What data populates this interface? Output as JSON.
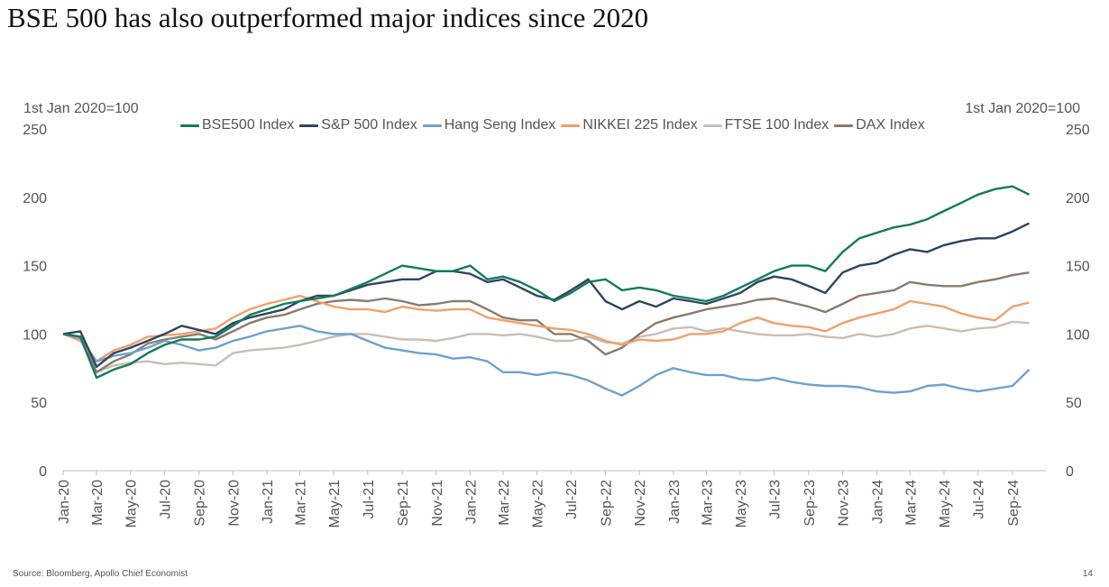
{
  "title": "BSE 500 has also outperformed major indices since 2020",
  "units": {
    "left": "1st Jan 2020=100",
    "right": "1st Jan 2020=100"
  },
  "source": "Source: Bloomberg, Apollo Chief Economist",
  "page_number": "14",
  "chart_data": {
    "type": "line",
    "title": "BSE 500 has also outperformed major indices since 2020",
    "ylabel": "1st Jan 2020=100",
    "ylim": [
      0,
      250
    ],
    "yticks": [
      0,
      50,
      100,
      150,
      200,
      250
    ],
    "xlim": [
      "2020-01-01",
      "2024-10-31"
    ],
    "x_tick_labels": [
      "Jan-20",
      "Mar-20",
      "May-20",
      "Jul-20",
      "Sep-20",
      "Nov-20",
      "Jan-21",
      "Mar-21",
      "May-21",
      "Jul-21",
      "Sep-21",
      "Nov-21",
      "Jan-22",
      "Mar-22",
      "May-22",
      "Jul-22",
      "Sep-22",
      "Nov-22",
      "Jan-23",
      "Mar-23",
      "May-23",
      "Jul-23",
      "Sep-23",
      "Nov-23",
      "Jan-24",
      "Mar-24",
      "May-24",
      "Jul-24",
      "Sep-24"
    ],
    "x_tick_dates": [
      "2020-01-01",
      "2020-03-01",
      "2020-05-01",
      "2020-07-01",
      "2020-09-01",
      "2020-11-01",
      "2021-01-01",
      "2021-03-01",
      "2021-05-01",
      "2021-07-01",
      "2021-09-01",
      "2021-11-01",
      "2022-01-01",
      "2022-03-01",
      "2022-05-01",
      "2022-07-01",
      "2022-09-01",
      "2022-11-01",
      "2023-01-01",
      "2023-03-01",
      "2023-05-01",
      "2023-07-01",
      "2023-09-01",
      "2023-11-01",
      "2024-01-01",
      "2024-03-01",
      "2024-05-01",
      "2024-07-01",
      "2024-09-01"
    ],
    "x": [
      "2020-01",
      "2020-02",
      "2020-03",
      "2020-04",
      "2020-05",
      "2020-06",
      "2020-07",
      "2020-08",
      "2020-09",
      "2020-10",
      "2020-11",
      "2020-12",
      "2021-01",
      "2021-02",
      "2021-03",
      "2021-04",
      "2021-05",
      "2021-06",
      "2021-07",
      "2021-08",
      "2021-09",
      "2021-10",
      "2021-11",
      "2021-12",
      "2022-01",
      "2022-02",
      "2022-03",
      "2022-04",
      "2022-05",
      "2022-06",
      "2022-07",
      "2022-08",
      "2022-09",
      "2022-10",
      "2022-11",
      "2022-12",
      "2023-01",
      "2023-02",
      "2023-03",
      "2023-04",
      "2023-05",
      "2023-06",
      "2023-07",
      "2023-08",
      "2023-09",
      "2023-10",
      "2023-11",
      "2023-12",
      "2024-01",
      "2024-02",
      "2024-03",
      "2024-04",
      "2024-05",
      "2024-06",
      "2024-07",
      "2024-08",
      "2024-09",
      "2024-10"
    ],
    "series": [
      {
        "name": "FTSE 100 Index",
        "color": "#c8beb7",
        "values": [
          100,
          96,
          72,
          77,
          79,
          80,
          78,
          79,
          78,
          77,
          86,
          88,
          89,
          90,
          92,
          95,
          98,
          100,
          100,
          98,
          96,
          96,
          95,
          97,
          100,
          100,
          99,
          100,
          98,
          95,
          95,
          98,
          94,
          93,
          98,
          100,
          104,
          105,
          102,
          104,
          102,
          100,
          99,
          99,
          100,
          98,
          97,
          100,
          98,
          100,
          104,
          106,
          104,
          102,
          104,
          105,
          109,
          108
        ]
      },
      {
        "name": "DAX Index",
        "color": "#8c7a6b",
        "values": [
          100,
          98,
          72,
          80,
          85,
          93,
          96,
          98,
          100,
          96,
          102,
          108,
          112,
          114,
          118,
          122,
          124,
          125,
          124,
          126,
          124,
          121,
          122,
          124,
          124,
          118,
          112,
          110,
          110,
          100,
          100,
          95,
          85,
          90,
          100,
          108,
          112,
          115,
          118,
          120,
          122,
          125,
          126,
          123,
          120,
          116,
          122,
          128,
          130,
          132,
          138,
          136,
          135,
          135,
          138,
          140,
          143,
          145
        ]
      },
      {
        "name": "NIKKEI 225 Index",
        "color": "#f0a06b",
        "values": [
          100,
          95,
          80,
          88,
          92,
          98,
          99,
          100,
          102,
          104,
          112,
          118,
          122,
          125,
          128,
          124,
          120,
          118,
          118,
          116,
          120,
          118,
          117,
          118,
          118,
          112,
          110,
          108,
          106,
          104,
          103,
          100,
          95,
          92,
          96,
          95,
          96,
          100,
          100,
          102,
          108,
          112,
          108,
          106,
          105,
          102,
          108,
          112,
          115,
          118,
          124,
          122,
          120,
          115,
          112,
          110,
          120,
          123
        ]
      },
      {
        "name": "Hang Seng Index",
        "color": "#6fa0d0",
        "values": [
          100,
          97,
          80,
          84,
          86,
          90,
          95,
          92,
          88,
          90,
          95,
          98,
          102,
          104,
          106,
          102,
          100,
          100,
          95,
          90,
          88,
          86,
          85,
          82,
          83,
          80,
          72,
          72,
          70,
          72,
          70,
          66,
          60,
          55,
          62,
          70,
          75,
          72,
          70,
          70,
          67,
          66,
          68,
          65,
          63,
          62,
          62,
          61,
          58,
          57,
          58,
          62,
          63,
          60,
          58,
          60,
          62,
          74
        ]
      },
      {
        "name": "S&P 500 Index",
        "color": "#2e4562",
        "values": [
          100,
          102,
          76,
          86,
          90,
          95,
          100,
          106,
          103,
          100,
          108,
          112,
          115,
          118,
          124,
          128,
          128,
          132,
          136,
          138,
          140,
          140,
          146,
          146,
          144,
          138,
          140,
          134,
          128,
          125,
          132,
          140,
          124,
          118,
          124,
          120,
          126,
          124,
          122,
          126,
          130,
          138,
          142,
          140,
          135,
          130,
          145,
          150,
          152,
          158,
          162,
          160,
          165,
          168,
          170,
          170,
          175,
          181
        ]
      },
      {
        "name": "BSE500 Index",
        "color": "#137b5b",
        "values": [
          100,
          98,
          68,
          74,
          78,
          86,
          92,
          96,
          96,
          98,
          106,
          114,
          118,
          122,
          124,
          126,
          128,
          133,
          138,
          144,
          150,
          148,
          146,
          146,
          150,
          140,
          142,
          138,
          132,
          124,
          130,
          138,
          140,
          132,
          134,
          132,
          128,
          126,
          124,
          128,
          134,
          140,
          146,
          150,
          150,
          146,
          160,
          170,
          174,
          178,
          180,
          184,
          190,
          196,
          202,
          206,
          208,
          202
        ]
      }
    ]
  }
}
